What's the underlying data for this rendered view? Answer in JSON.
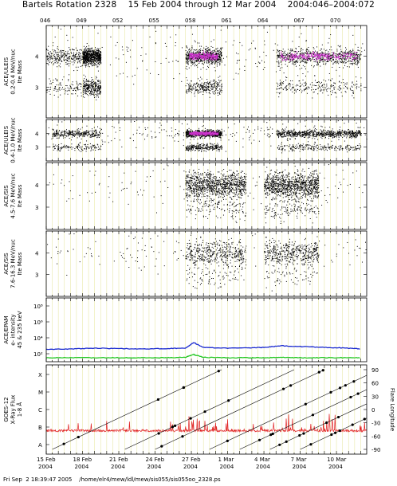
{
  "header": {
    "title": "Bartels Rotation 2328    15 Feb 2004 through 12 Mar 2004    2004:046–2004:072"
  },
  "footer": {
    "text": "Fri Sep  2 18:39:47 2005    /home/elr4/mew/ldl/mew/sis055/sis055oo_2328.ps"
  },
  "colors": {
    "grid": "#e8e8a8",
    "points": "#000000",
    "density": "#cc33cc",
    "epam_upper": "#1a2ad0",
    "epam_lower": "#22c722",
    "xray": "#e02020",
    "flare": "#000000"
  },
  "chart_data": [
    {
      "type": "scatter",
      "panel": "ace-ulels-low",
      "ylabel": "ACE/ULEIS\n0.2-0.4 MeV/nuc\nIte Mass",
      "yticks": [
        "4",
        "3"
      ],
      "ylim": [
        2,
        5
      ],
      "grid": true,
      "top_day_ticks": [
        "046",
        "049",
        "052",
        "055",
        "058",
        "061",
        "064",
        "067",
        "070"
      ],
      "activity_bursts": [
        {
          "day_start": 46.0,
          "day_end": 49.5,
          "density": "high"
        },
        {
          "day_start": 49.0,
          "day_end": 50.5,
          "density": "very high"
        },
        {
          "day_start": 57.5,
          "day_end": 60.5,
          "density": "very high",
          "heavy_ions": true
        },
        {
          "day_start": 65.0,
          "day_end": 72.0,
          "density": "very high",
          "heavy_ions": true
        }
      ]
    },
    {
      "type": "scatter",
      "panel": "ace-ulels-high",
      "ylabel": "ACE/ULEIS\n0.4-1.0 MeV/nuc\nIte Mass",
      "yticks": [
        "4",
        "3"
      ],
      "ylim": [
        2,
        5
      ],
      "grid": true,
      "activity_bursts": [
        {
          "day_start": 46.5,
          "day_end": 50.5,
          "density": "high"
        },
        {
          "day_start": 57.5,
          "day_end": 60.5,
          "density": "very high",
          "heavy_ions": true
        },
        {
          "day_start": 65.0,
          "day_end": 72.0,
          "density": "very high"
        }
      ]
    },
    {
      "type": "scatter",
      "panel": "ace-sis-low",
      "ylabel": "ACE/SIS\n4.5-7.6 MeV/nuc\nIte Mass",
      "yticks": [
        "4",
        "3"
      ],
      "ylim": [
        2,
        5
      ],
      "grid": true,
      "activity_bursts": [
        {
          "day_start": 57.5,
          "day_end": 62.5,
          "density": "very high"
        },
        {
          "day_start": 64.0,
          "day_end": 68.5,
          "density": "very high"
        }
      ]
    },
    {
      "type": "scatter",
      "panel": "ace-sis-high",
      "ylabel": "ACE/SIS\n7.6-16.3 MeV/nuc\nIte Mass",
      "yticks": [
        "4",
        "3"
      ],
      "ylim": [
        2,
        5
      ],
      "grid": true,
      "activity_bursts": [
        {
          "day_start": 57.5,
          "day_end": 62.5,
          "density": "high"
        },
        {
          "day_start": 64.0,
          "day_end": 68.5,
          "density": "high"
        }
      ]
    },
    {
      "type": "line",
      "panel": "ace-epam",
      "ylabel": "ACE/EPAM\ne- intensity\n45 & 235 keV",
      "yscale": "log",
      "yticks": [
        "10⁸",
        "10⁶",
        "10⁴",
        "10²"
      ],
      "ylim_exponent": [
        1,
        9
      ],
      "grid": true,
      "x": [
        46,
        48,
        50,
        52,
        54,
        56,
        57.5,
        58.2,
        59,
        61,
        63,
        64,
        65.5,
        67,
        69,
        71,
        72
      ],
      "series": [
        {
          "color_key": "epam_upper",
          "log10_values": [
            2.55,
            2.6,
            2.7,
            2.65,
            2.6,
            2.65,
            2.7,
            3.4,
            2.8,
            2.7,
            2.75,
            2.8,
            3.0,
            2.9,
            2.8,
            2.7,
            2.6
          ]
        },
        {
          "color_key": "epam_lower",
          "log10_values": [
            1.5,
            1.5,
            1.5,
            1.5,
            1.5,
            1.5,
            1.55,
            1.9,
            1.55,
            1.5,
            1.5,
            1.5,
            1.55,
            1.5,
            1.5,
            1.5,
            1.5
          ]
        }
      ]
    },
    {
      "type": "line",
      "panel": "goes-xray",
      "ylabel": "GOES-12\nX-Ray Flux\n1-8 Å",
      "yticks_left": [
        "X",
        "M",
        "C",
        "B",
        "A"
      ],
      "right_label": "Flare Longitude",
      "yticks_right": [
        "90",
        "60",
        "30",
        "0",
        "-30",
        "-60",
        "-90"
      ],
      "ylim_right": [
        -90,
        90
      ],
      "grid": true,
      "x_tick_labels": [
        {
          "day": 46,
          "label": "15 Feb",
          "year": "2004"
        },
        {
          "day": 49,
          "label": "18 Feb",
          "year": "2004"
        },
        {
          "day": 52,
          "label": "21 Feb",
          "year": "2004"
        },
        {
          "day": 55,
          "label": "24 Feb",
          "year": "2004"
        },
        {
          "day": 58,
          "label": "27 Feb",
          "year": "2004"
        },
        {
          "day": 61,
          "label": "1 Mar",
          "year": "2004"
        },
        {
          "day": 64,
          "label": "4 Mar",
          "year": "2004"
        },
        {
          "day": 67,
          "label": "7 Mar",
          "year": "2004"
        },
        {
          "day": 70,
          "label": "10 Mar",
          "year": "2004"
        }
      ],
      "flare_tracks_start_day": [
        46.5,
        52.5,
        55.0,
        59.5,
        62.0,
        64.5,
        67.0
      ]
    }
  ]
}
